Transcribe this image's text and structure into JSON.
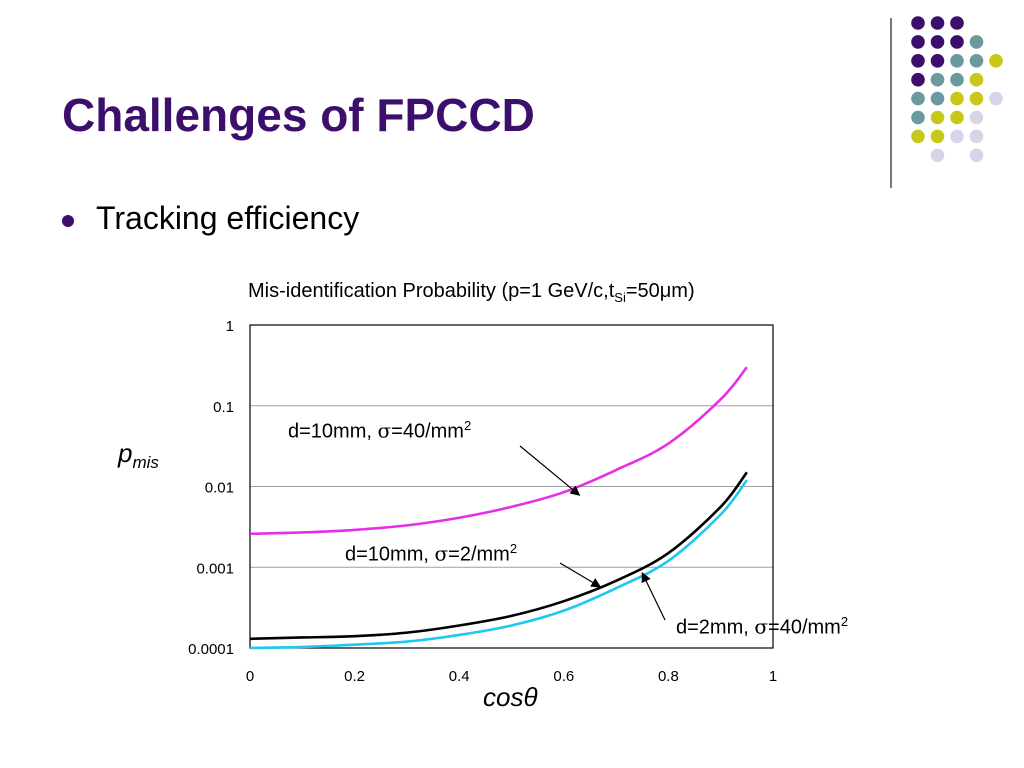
{
  "slide": {
    "title": "Challenges of FPCCD",
    "bullets": [
      "Tracking efficiency"
    ]
  },
  "theme": {
    "title_color": "#3b0f6b",
    "dot_colors": {
      "purple": "#3b0f6b",
      "teal": "#6b9a9e",
      "olive": "#c8c81a",
      "lavender": "#d5d5ea"
    }
  },
  "chart_data": {
    "type": "line",
    "title": {
      "prefix": "Mis-identification Probability (p=1 GeV/c,t",
      "subscript": "Si",
      "suffix": "=50μm)"
    },
    "xlabel": "cosθ",
    "ylabel": {
      "base": "p",
      "subscript": "mis"
    },
    "xlim": [
      0,
      1
    ],
    "ylim": [
      0.0001,
      1
    ],
    "y_scale": "log",
    "grid": true,
    "x_ticks": [
      "0",
      "0.2",
      "0.4",
      "0.6",
      "0.8",
      "1"
    ],
    "y_ticks": [
      "1",
      "0.1",
      "0.01",
      "0.001",
      "0.0001"
    ],
    "series": [
      {
        "name": "d=10mm, σ=40/mm²",
        "color": "#e62ee6",
        "x": [
          0,
          0.1,
          0.2,
          0.3,
          0.4,
          0.5,
          0.6,
          0.7,
          0.8,
          0.9,
          0.95
        ],
        "y": [
          0.0026,
          0.0027,
          0.0029,
          0.0033,
          0.0041,
          0.0056,
          0.0085,
          0.016,
          0.034,
          0.12,
          0.3
        ]
      },
      {
        "name": "d=10mm, σ=2/mm²",
        "color": "#000000",
        "x": [
          0,
          0.1,
          0.2,
          0.3,
          0.4,
          0.5,
          0.6,
          0.7,
          0.8,
          0.9,
          0.95
        ],
        "y": [
          0.00013,
          0.000135,
          0.00014,
          0.000155,
          0.00019,
          0.00025,
          0.00038,
          0.00068,
          0.0015,
          0.0056,
          0.015
        ]
      },
      {
        "name": "d=2mm, σ=40/mm²",
        "color": "#1ec8f0",
        "x": [
          0,
          0.1,
          0.2,
          0.3,
          0.4,
          0.5,
          0.6,
          0.7,
          0.8,
          0.9,
          0.95
        ],
        "y": [
          0.0001,
          0.000103,
          0.00011,
          0.00012,
          0.000145,
          0.00019,
          0.00029,
          0.00055,
          0.0012,
          0.0045,
          0.012
        ]
      }
    ],
    "annotations": [
      {
        "series": 0,
        "base": "d=10mm, ",
        "sym": "σ",
        "rest": "=40/mm",
        "sup": "2",
        "point": [
          0.63,
          0.0078
        ]
      },
      {
        "series": 1,
        "base": "d=10mm, ",
        "sym": "σ",
        "rest": "=2/mm",
        "sup": "2",
        "point": [
          0.67,
          0.00057
        ]
      },
      {
        "series": 2,
        "base": "d=2mm, ",
        "sym": "σ",
        "rest": "=40/mm",
        "sup": "2",
        "point": [
          0.75,
          0.00085
        ]
      }
    ]
  }
}
